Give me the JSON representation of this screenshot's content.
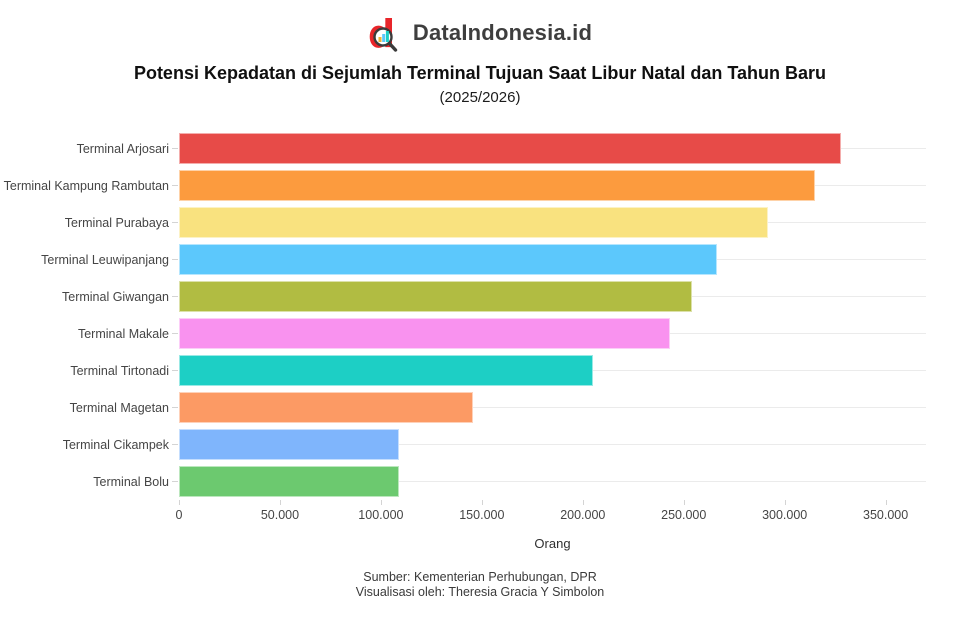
{
  "brand": {
    "name": "DataIndonesia.id",
    "logo_color": "#e8252a",
    "logo_icon": "magnifier-d-icon"
  },
  "title": "Potensi Kepadatan di Sejumlah Terminal Tujuan Saat Libur Natal dan Tahun Baru",
  "subtitle": "(2025/2026)",
  "footer": {
    "source": "Sumber: Kementerian Perhubungan, DPR",
    "credit": "Visualisasi oleh: Theresia Gracia Y Simbolon"
  },
  "chart_data": {
    "type": "bar",
    "orientation": "horizontal",
    "title": "Potensi Kepadatan di Sejumlah Terminal Tujuan Saat Libur Natal dan Tahun Baru",
    "subtitle": "(2025/2026)",
    "xlabel": "Orang",
    "ylabel": "",
    "xlim": [
      0,
      370000
    ],
    "grid": "category-gridlines-horizontal",
    "legend": "none",
    "categories": [
      "Terminal Arjosari",
      "Terminal Kampung Rambutan",
      "Terminal Purabaya",
      "Terminal Leuwipanjang",
      "Terminal Giwangan",
      "Terminal Makale",
      "Terminal Tirtonadi",
      "Terminal Magetan",
      "Terminal Cikampek",
      "Terminal Bolu"
    ],
    "values": [
      327700,
      314900,
      291500,
      266700,
      254300,
      243000,
      205200,
      145800,
      109100,
      109000
    ],
    "colors": [
      "#e74b48",
      "#fc9b3e",
      "#f9e27f",
      "#5cc8fc",
      "#b1bc42",
      "#f992ef",
      "#1dcfc5",
      "#fc9a64",
      "#7fb5fc",
      "#6cc96f"
    ],
    "xticks": [
      0,
      50000,
      100000,
      150000,
      200000,
      250000,
      300000,
      350000
    ],
    "xtick_labels": [
      "0",
      "50.000",
      "100.000",
      "150.000",
      "200.000",
      "250.000",
      "300.000",
      "350.000"
    ]
  }
}
